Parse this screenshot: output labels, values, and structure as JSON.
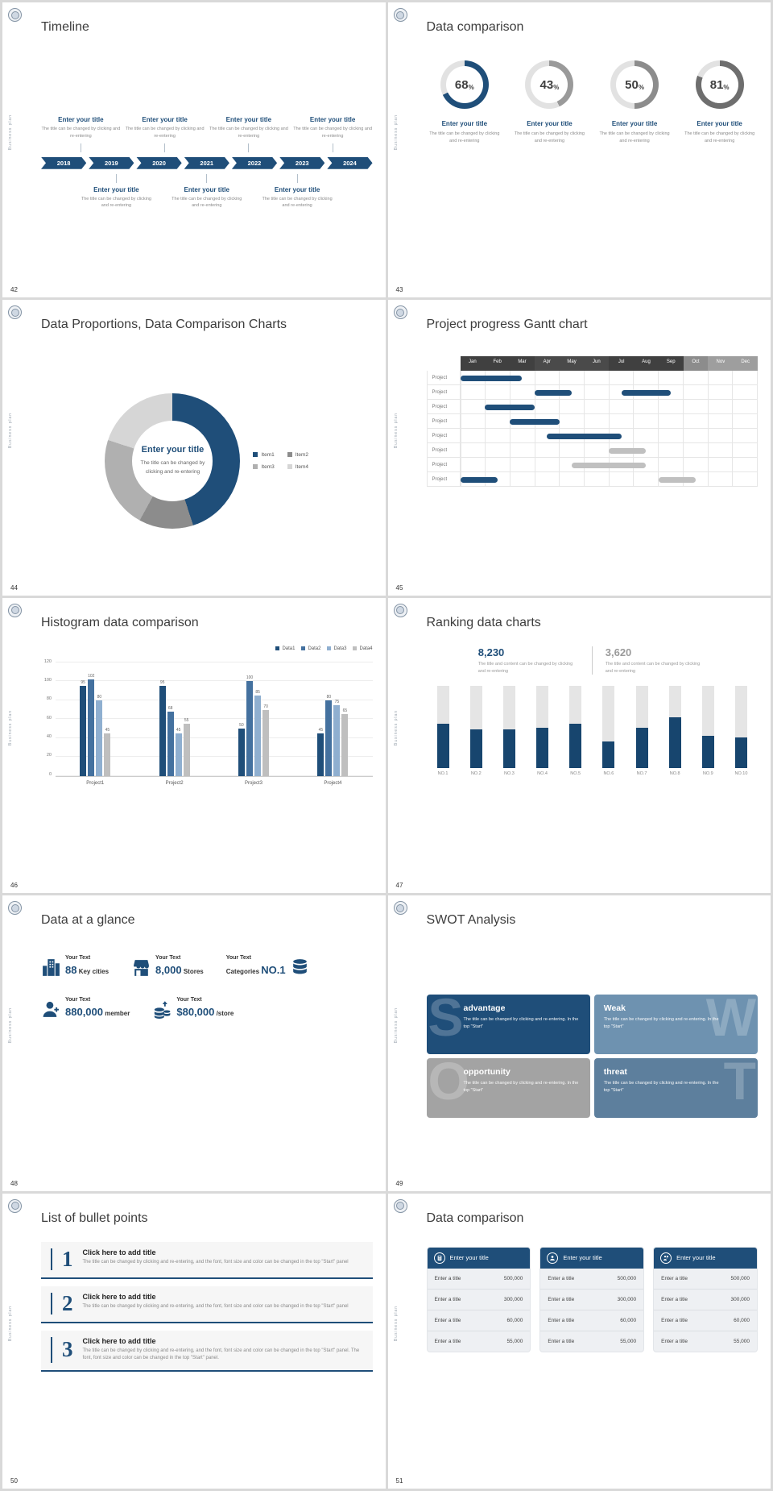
{
  "common": {
    "side_label": "Business plan",
    "navy": "#1f4e79"
  },
  "slides": [
    {
      "number": "42",
      "title": "Timeline",
      "timeline": {
        "entry_title": "Enter your title",
        "entry_desc": "The title can be changed by clicking and re-entering",
        "years": [
          "2018",
          "2019",
          "2020",
          "2021",
          "2022",
          "2023",
          "2024"
        ],
        "top_entries": 4,
        "bottom_entries": 3
      }
    },
    {
      "number": "43",
      "title": "Data comparison",
      "donuts": {
        "entry_title": "Enter your title",
        "entry_desc": "The title can be changed by clicking and re-entering",
        "track_color": "#e2e2e2",
        "items": [
          {
            "pct": 68,
            "color": "#1f4e79"
          },
          {
            "pct": 43,
            "color": "#9a9a9a"
          },
          {
            "pct": 50,
            "color": "#8c8c8c"
          },
          {
            "pct": 81,
            "color": "#6e6e6e"
          }
        ]
      }
    },
    {
      "number": "44",
      "title": "Data Proportions, Data Comparison Charts",
      "donut_chart": {
        "type": "pie",
        "center_title": "Enter your title",
        "center_desc": "The title can be changed by clicking and re-entering",
        "segments": [
          {
            "label": "Item1",
            "value": 45,
            "color": "#1f4e79"
          },
          {
            "label": "Item2",
            "value": 13,
            "color": "#8c8c8c"
          },
          {
            "label": "Item3",
            "value": 22,
            "color": "#b0b0b0"
          },
          {
            "label": "Item4",
            "value": 20,
            "color": "#d6d6d6"
          }
        ]
      }
    },
    {
      "number": "45",
      "title": "Project progress Gantt chart",
      "gantt": {
        "months": [
          "Jan",
          "Feb",
          "Mar",
          "Apr",
          "May",
          "Jun",
          "Jul",
          "Aug",
          "Sep",
          "Oct",
          "Nov",
          "Dec"
        ],
        "month_colors": [
          "#404040",
          "#404040",
          "#404040",
          "#4a4a4a",
          "#4a4a4a",
          "#4a4a4a",
          "#404040",
          "#404040",
          "#404040",
          "#8c8c8c",
          "#9e9e9e",
          "#9e9e9e"
        ],
        "row_label": "Project",
        "rows": 8,
        "bars": [
          {
            "row": 0,
            "start": 0,
            "len": 2.5,
            "color": "#1f4e79"
          },
          {
            "row": 1,
            "start": 3,
            "len": 1.5,
            "color": "#1f4e79"
          },
          {
            "row": 1,
            "start": 6.5,
            "len": 2,
            "color": "#1f4e79"
          },
          {
            "row": 2,
            "start": 1,
            "len": 2,
            "color": "#1f4e79"
          },
          {
            "row": 3,
            "start": 2,
            "len": 2,
            "color": "#1f4e79"
          },
          {
            "row": 4,
            "start": 3.5,
            "len": 3,
            "color": "#1f4e79"
          },
          {
            "row": 5,
            "start": 6,
            "len": 1.5,
            "color": "#c0c0c0"
          },
          {
            "row": 6,
            "start": 4.5,
            "len": 3,
            "color": "#c0c0c0"
          },
          {
            "row": 7,
            "start": 0,
            "len": 1.5,
            "color": "#1f4e79"
          },
          {
            "row": 7,
            "start": 8,
            "len": 1.5,
            "color": "#c0c0c0"
          }
        ]
      }
    },
    {
      "number": "46",
      "title": "Histogram data comparison",
      "histogram": {
        "type": "bar",
        "categories": [
          "Project1",
          "Project2",
          "Project3",
          "Project4"
        ],
        "series": [
          {
            "name": "Data1",
            "color": "#1f4e79",
            "values": [
              95,
              95,
              50,
              45
            ]
          },
          {
            "name": "Data2",
            "color": "#44719f",
            "values": [
              102,
              68,
              100,
              80
            ]
          },
          {
            "name": "Data3",
            "color": "#8fafd0",
            "values": [
              80,
              45,
              85,
              75
            ]
          },
          {
            "name": "Data4",
            "color": "#bfbfbf",
            "values": [
              45,
              55,
              70,
              65
            ]
          }
        ],
        "y_ticks": [
          0,
          20,
          40,
          60,
          80,
          100,
          120
        ],
        "y_max": 120
      }
    },
    {
      "number": "47",
      "title": "Ranking data charts",
      "ranking": {
        "type": "bar",
        "stat1": {
          "value": "8,230",
          "desc": "The title and content can be changed by clicking and re-entering",
          "color": "#1f4e79"
        },
        "stat2": {
          "value": "3,620",
          "desc": "The title and content can be changed by clicking and re-entering",
          "color": "#9a9a9a"
        },
        "labels": [
          "NO.1",
          "NO.2",
          "NO.3",
          "NO.4",
          "NO.5",
          "NO.6",
          "NO.7",
          "NO.8",
          "NO.9",
          "NO.10"
        ],
        "values": [
          54,
          47,
          47,
          49,
          54,
          33,
          49,
          62,
          40,
          38
        ],
        "bar_color": "#17456e",
        "track_color": "#e5e5e5"
      }
    },
    {
      "number": "48",
      "title": "Data at a glance",
      "glance": {
        "rows": [
          3,
          2
        ],
        "items": [
          {
            "icon": "city-buildings-icon",
            "label": "Your Text",
            "value": "88",
            "unit": "Key cities",
            "unit_first": false,
            "icon_side": "left"
          },
          {
            "icon": "store-icon",
            "label": "Your Text",
            "value": "8,000",
            "unit": "Stores",
            "unit_first": false,
            "icon_side": "left"
          },
          {
            "icon": "database-icon",
            "label": "Your Text",
            "value": "NO.1",
            "unit": "Categories",
            "unit_first": true,
            "icon_side": "right"
          },
          {
            "icon": "member-icon",
            "label": "Your Text",
            "value": "880,000",
            "unit": "member",
            "unit_first": false,
            "icon_side": "left"
          },
          {
            "icon": "money-icon",
            "label": "Your Text",
            "value": "$80,000",
            "unit": "/store",
            "unit_first": false,
            "icon_side": "left"
          }
        ]
      }
    },
    {
      "number": "49",
      "title": "SWOT Analysis",
      "swot": {
        "desc": "The title can be changed by clicking and re-entering. In the top \"Start\"",
        "quads": [
          {
            "letter": "S",
            "title": "advantage",
            "color": "#1f4e79",
            "letter_side": "left"
          },
          {
            "letter": "W",
            "title": "Weak",
            "color": "#6e92b0",
            "letter_side": "right"
          },
          {
            "letter": "O",
            "title": "opportunity",
            "color": "#a3a3a3",
            "letter_side": "left"
          },
          {
            "letter": "T",
            "title": "threat",
            "color": "#5d7f9d",
            "letter_side": "right"
          }
        ]
      }
    },
    {
      "number": "50",
      "title": "List of bullet points",
      "bullets": {
        "items": [
          {
            "num": "1",
            "title": "Click here to add title",
            "desc": "The title can be changed by clicking and re-entering, and the font, font size and color can be changed in the top \"Start\" panel"
          },
          {
            "num": "2",
            "title": "Click here to add title",
            "desc": "The title can be changed by clicking and re-entering, and the font, font size and color can be changed in the top \"Start\" panel"
          },
          {
            "num": "3",
            "title": "Click here to add title",
            "desc": "The title can be changed by clicking and re-entering, and the font, font size and color can be changed in the top \"Start\" panel. The font, font size and color can be changed in the top \"Start\" panel."
          }
        ]
      }
    },
    {
      "number": "51",
      "title": "Data comparison",
      "cards": {
        "count": 3,
        "header_title": "Enter your title",
        "row_label": "Enter a title",
        "values": [
          "500,000",
          "300,000",
          "60,000",
          "55,000"
        ],
        "icons": [
          "calculator-icon",
          "person-icon",
          "presenter-icon"
        ]
      }
    }
  ]
}
